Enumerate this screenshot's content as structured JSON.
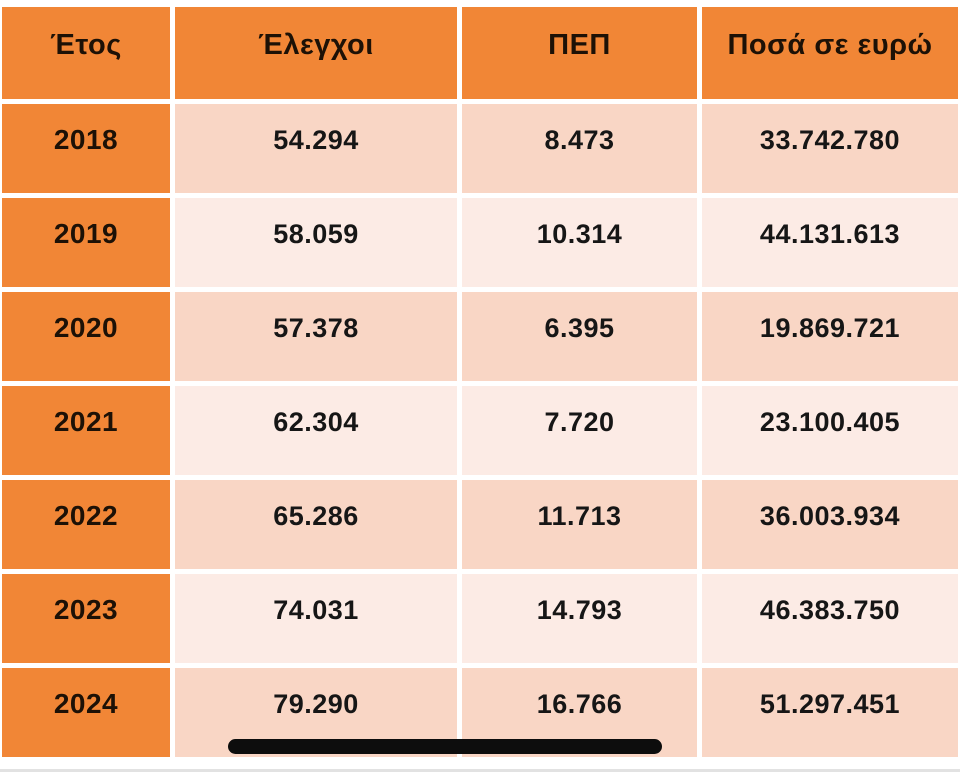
{
  "table": {
    "columns": [
      "Έτος",
      "Έλεγχοι",
      "ΠΕΠ",
      "Ποσά σε ευρώ"
    ],
    "rows": [
      {
        "year": "2018",
        "checks": "54.294",
        "pep": "8.473",
        "amount": "33.742.780"
      },
      {
        "year": "2019",
        "checks": "58.059",
        "pep": "10.314",
        "amount": "44.131.613"
      },
      {
        "year": "2020",
        "checks": "57.378",
        "pep": "6.395",
        "amount": "19.869.721"
      },
      {
        "year": "2021",
        "checks": "62.304",
        "pep": "7.720",
        "amount": "23.100.405"
      },
      {
        "year": "2022",
        "checks": "65.286",
        "pep": "11.713",
        "amount": "36.003.934"
      },
      {
        "year": "2023",
        "checks": "74.031",
        "pep": "14.793",
        "amount": "46.383.750"
      },
      {
        "year": "2024",
        "checks": "79.290",
        "pep": "16.766",
        "amount": "51.297.451"
      }
    ]
  },
  "colors": {
    "header_orange": "#F18636",
    "row_peach_dark": "#F9D6C5",
    "row_peach_light": "#FCEBE5",
    "divider_white": "#FFFFFF",
    "text_dark": "#161616",
    "marker_bar_black": "#0D0D0D"
  },
  "chart_data": {
    "type": "table",
    "columns": [
      "Έτος",
      "Έλεγχοι",
      "ΠΕΠ",
      "Ποσά σε ευρώ"
    ],
    "rows": [
      [
        "2018",
        "54.294",
        "8.473",
        "33.742.780"
      ],
      [
        "2019",
        "58.059",
        "10.314",
        "44.131.613"
      ],
      [
        "2020",
        "57.378",
        "6.395",
        "19.869.721"
      ],
      [
        "2021",
        "62.304",
        "7.720",
        "23.100.405"
      ],
      [
        "2022",
        "65.286",
        "11.713",
        "36.003.934"
      ],
      [
        "2023",
        "74.031",
        "14.793",
        "46.383.750"
      ],
      [
        "2024",
        "79.290",
        "16.766",
        "51.297.451"
      ]
    ],
    "notes": {
      "years": [
        2018,
        2019,
        2020,
        2021,
        2022,
        2023,
        2024
      ],
      "checks": [
        54294,
        58059,
        57378,
        62304,
        65286,
        74031,
        79290
      ],
      "pep": [
        8473,
        10314,
        6395,
        7720,
        11713,
        14793,
        16766
      ],
      "amounts_eur": [
        33742780,
        44131613,
        19869721,
        23100405,
        36003934,
        46383750,
        51297451
      ]
    }
  }
}
